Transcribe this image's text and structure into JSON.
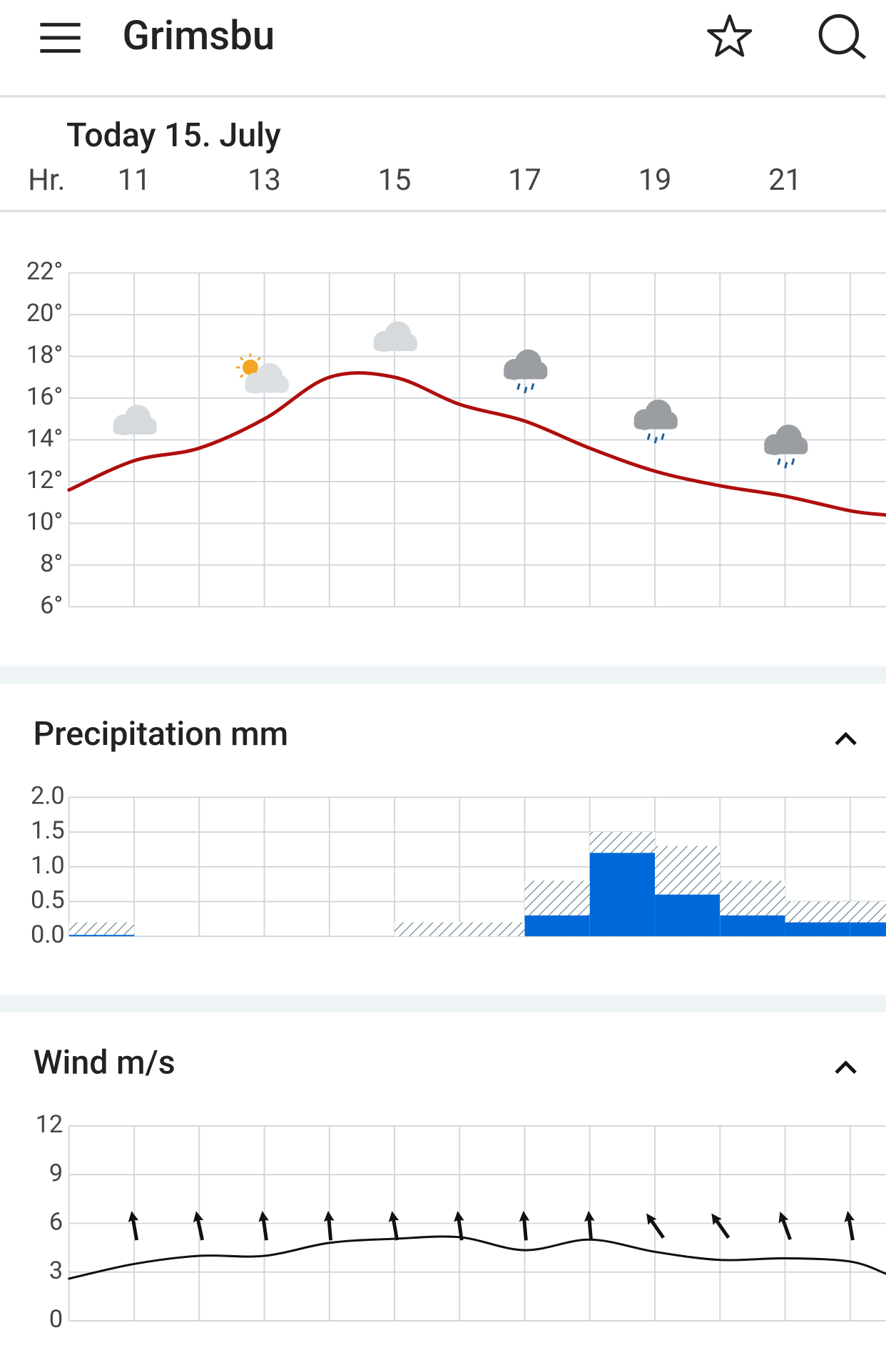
{
  "header": {
    "title": "Grimsbu"
  },
  "date": "Today 15. July",
  "hours": {
    "label": "Hr.",
    "ticks": [
      11,
      13,
      15,
      17,
      19,
      21
    ]
  },
  "sections": {
    "precipitation": "Precipitation mm",
    "wind": "Wind m/s"
  },
  "chart_data": [
    {
      "type": "line",
      "color": "#b00d0d",
      "xlim": [
        10,
        22.55
      ],
      "xgrid": [
        10,
        11,
        12,
        13,
        14,
        15,
        16,
        17,
        18,
        19,
        20,
        21,
        22
      ],
      "x": [
        10,
        11,
        12,
        13,
        14,
        15,
        16,
        17,
        18,
        19,
        20,
        21,
        22,
        22.55
      ],
      "values": [
        11.6,
        13.0,
        13.6,
        15.0,
        17.0,
        17.0,
        15.7,
        14.9,
        13.6,
        12.5,
        11.8,
        11.3,
        10.6,
        10.4
      ],
      "ylim": [
        6,
        22
      ],
      "yticks": [
        {
          "value": 6,
          "label": "6°"
        },
        {
          "value": 8,
          "label": "8°"
        },
        {
          "value": 10,
          "label": "10°"
        },
        {
          "value": 12,
          "label": "12°"
        },
        {
          "value": 14,
          "label": "14°"
        },
        {
          "value": 16,
          "label": "16°"
        },
        {
          "value": 18,
          "label": "18°"
        },
        {
          "value": 20,
          "label": "20°"
        },
        {
          "value": 22,
          "label": "22°"
        }
      ]
    },
    {
      "type": "histogram",
      "color": "#0069d9",
      "xlim": [
        10,
        22.55
      ],
      "xgrid": [
        10,
        11,
        12,
        13,
        14,
        15,
        16,
        17,
        18,
        19,
        20,
        21,
        22
      ],
      "bins": [
        10,
        11,
        12,
        13,
        14,
        15,
        16,
        17,
        18,
        19,
        20,
        21,
        22,
        22.55
      ],
      "values": [
        0.02,
        0,
        0,
        0,
        0,
        0,
        0,
        0.3,
        1.2,
        0.6,
        0.3,
        0.2,
        0.2
      ],
      "max_values": [
        0.2,
        0,
        0,
        0,
        0,
        0.2,
        0.2,
        0.8,
        1.5,
        1.3,
        0.8,
        0.5,
        0.5
      ],
      "ylim": [
        0,
        2
      ],
      "yticks": [
        {
          "value": 0,
          "label": "0.0"
        },
        0.5,
        {
          "value": 1,
          "label": "1.0"
        },
        1.5,
        {
          "value": 2,
          "label": "2.0"
        }
      ]
    },
    {
      "type": "wind",
      "color": "#111111",
      "xlim": [
        10,
        22.55
      ],
      "xgrid": [
        10,
        11,
        12,
        13,
        14,
        15,
        16,
        17,
        18,
        19,
        20,
        21,
        22
      ],
      "x": [
        10,
        11,
        12,
        13,
        14,
        15,
        16,
        17,
        18,
        19,
        20,
        21,
        22,
        22.55
      ],
      "values": [
        2.6,
        3.5,
        4.0,
        4.0,
        4.8,
        5.05,
        5.15,
        4.35,
        5.0,
        4.25,
        3.75,
        3.85,
        3.65,
        2.9
      ],
      "arrow_x": [
        11,
        12,
        13,
        14,
        15,
        16,
        17,
        18,
        19,
        20,
        21,
        22
      ],
      "directions": [
        -10,
        -12,
        -8,
        -5,
        -10,
        -8,
        -5,
        -5,
        -35,
        -35,
        -20,
        -10
      ],
      "ylim": [
        0,
        12
      ],
      "yticks": [
        0,
        3,
        6,
        9,
        12
      ]
    }
  ]
}
